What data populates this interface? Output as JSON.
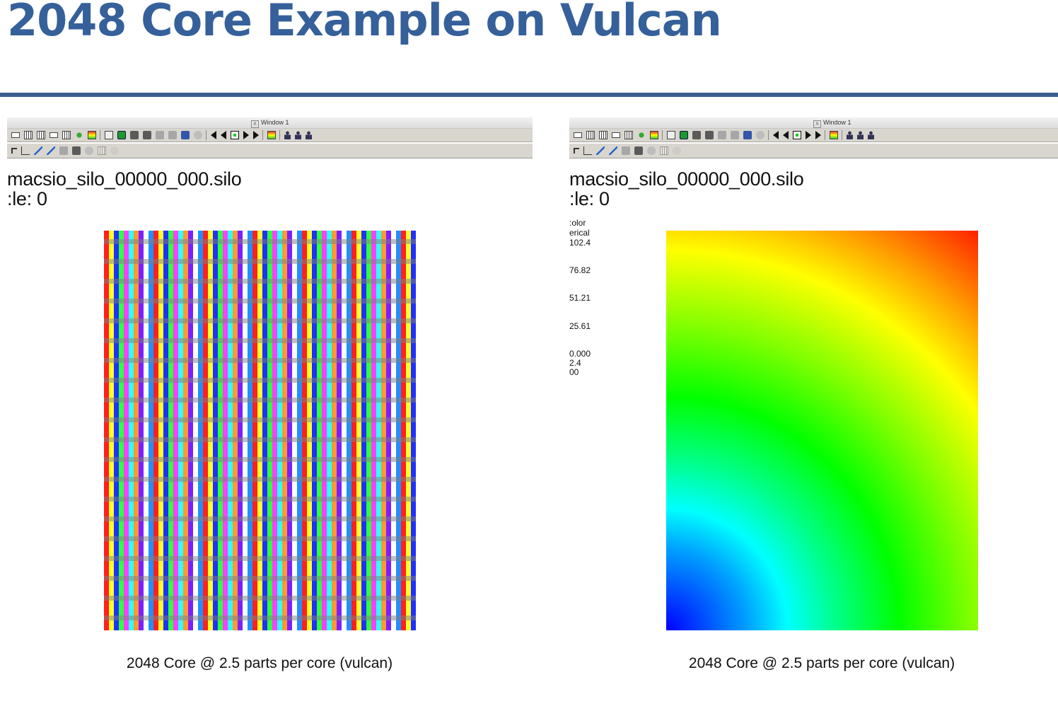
{
  "slide": {
    "title": "2048 Core Example on Vulcan"
  },
  "panels": [
    {
      "window_title": "Window 1",
      "filename": "macsio_silo_00000_000.silo",
      "cycle": ":le: 0",
      "caption": "2048 Core @ 2.5 parts per core (vulcan)"
    },
    {
      "window_title": "Window 1",
      "filename": "macsio_silo_00000_000.silo",
      "cycle": ":le: 0",
      "legend": {
        "lines": [
          ":olor",
          "erical",
          "102.4",
          "76.82",
          "51.21",
          "25.61",
          "0.000",
          "2.4",
          "00"
        ]
      },
      "caption": "2048 Core @ 2.5 parts per core (vulcan)"
    }
  ],
  "toolbar_icons": {
    "row1": [
      "layout-1x1-icon",
      "layout-2x1-icon",
      "layout-2x2-icon",
      "layout-3x2-icon",
      "layout-3x3-icon",
      "lock-icon",
      "navigate-icon",
      "box-view-icon",
      "green-plot-icon",
      "camera-icon",
      "camera-alt-icon",
      "gray-camera-icon",
      "save-view-icon",
      "blue-view-icon",
      "dim-view-icon",
      "prev-frame-icon",
      "reverse-play-icon",
      "stop-icon",
      "play-icon",
      "next-frame-icon",
      "color-table-icon",
      "person-icon",
      "person-pick-icon",
      "person-alt-icon"
    ],
    "row2": [
      "pick-zone-icon",
      "axes-icon",
      "line-tool-icon",
      "ruler-icon",
      "lineout-icon",
      "box-icon",
      "sphere-icon",
      "plane-icon",
      "dim-tool-icon"
    ]
  },
  "colors": {
    "title": "#35609a",
    "rule": "#3b5f8e"
  }
}
